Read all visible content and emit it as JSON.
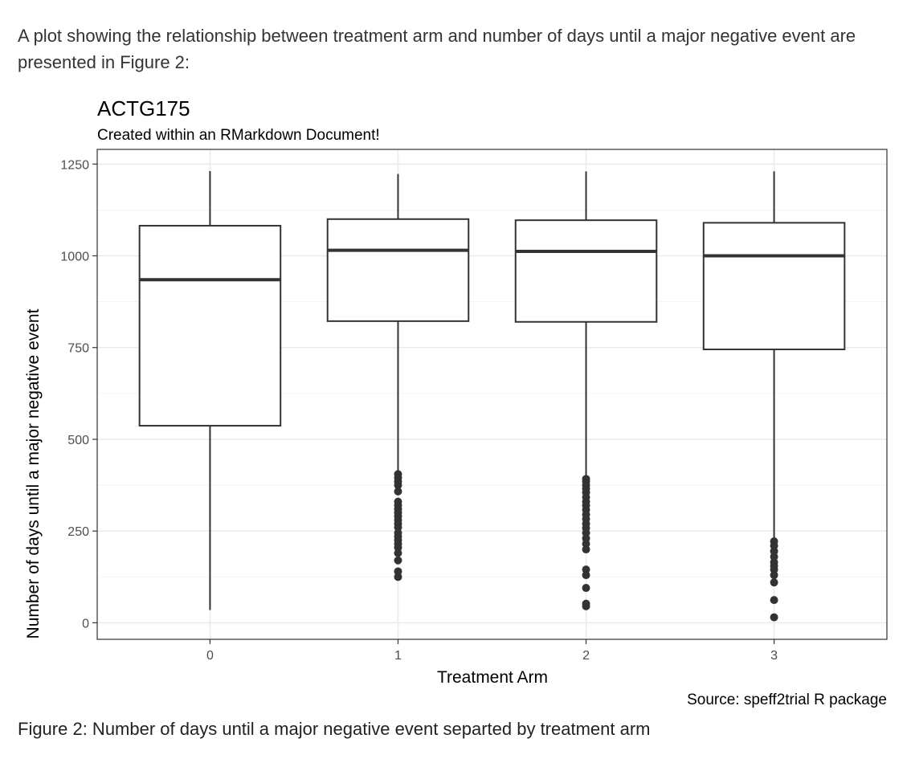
{
  "intro_text": "A plot showing the relationship between treatment arm and number of days until a major negative event are presented in Figure 2:",
  "caption_text": "Figure 2: Number of days until a major negative event separted by treatment arm",
  "chart_data": {
    "type": "box",
    "title": "ACTG175",
    "subtitle": "Created within an RMarkdown Document!",
    "xlabel": "Treatment Arm",
    "ylabel": "Number of days until a major negative event",
    "source": "Source: speff2trial R package",
    "ylim": [
      -45,
      1290
    ],
    "yticks": [
      0,
      250,
      500,
      750,
      1000,
      1250
    ],
    "grid": true,
    "categories": [
      "0",
      "1",
      "2",
      "3"
    ],
    "boxes": [
      {
        "category": "0",
        "whisker_low": 35,
        "q1": 537,
        "median": 935,
        "q3": 1082,
        "whisker_high": 1231,
        "outliers": []
      },
      {
        "category": "1",
        "whisker_low": 410,
        "q1": 822,
        "median": 1015,
        "q3": 1100,
        "whisker_high": 1223,
        "outliers": [
          125,
          140,
          170,
          190,
          205,
          215,
          225,
          235,
          245,
          260,
          270,
          280,
          290,
          300,
          310,
          320,
          330,
          358,
          375,
          385,
          395,
          405
        ]
      },
      {
        "category": "2",
        "whisker_low": 395,
        "q1": 820,
        "median": 1012,
        "q3": 1097,
        "whisker_high": 1230,
        "outliers": [
          45,
          52,
          95,
          130,
          145,
          200,
          215,
          230,
          245,
          258,
          270,
          283,
          295,
          308,
          320,
          330,
          342,
          355,
          365,
          375,
          385,
          392
        ]
      },
      {
        "category": "3",
        "whisker_low": 230,
        "q1": 745,
        "median": 1000,
        "q3": 1090,
        "whisker_high": 1230,
        "outliers": [
          15,
          62,
          110,
          130,
          145,
          155,
          165,
          180,
          195,
          210,
          222
        ]
      }
    ],
    "colors": {
      "box_line": "#333333",
      "grid": "#ebebeb",
      "panel_border": "#333333",
      "point": "#333333",
      "tick_text": "#4d4d4d"
    }
  }
}
